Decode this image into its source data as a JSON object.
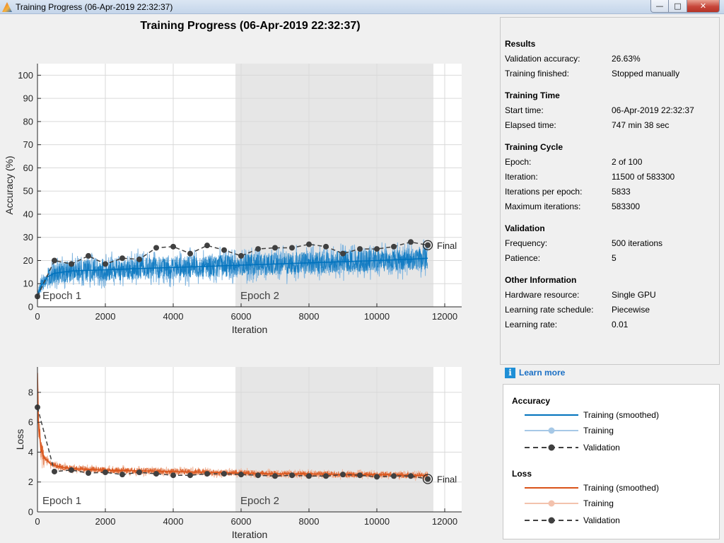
{
  "window": {
    "title": "Training Progress (06-Apr-2019 22:32:37)",
    "app_icon": "matlab-logo-icon",
    "minimize_icon": "minimize-icon",
    "maximize_icon": "maximize-icon",
    "close_icon": "close-icon"
  },
  "plot_title": "Training Progress (06-Apr-2019 22:32:37)",
  "accuracy_plot": {
    "chart_data": {
      "type": "line",
      "xlabel": "Iteration",
      "ylabel": "Accuracy (%)",
      "xlim": [
        0,
        12500
      ],
      "ylim": [
        0,
        105
      ],
      "x_ticks": [
        "0",
        "2000",
        "4000",
        "6000",
        "8000",
        "10000",
        "12000"
      ],
      "y_ticks": [
        "0",
        "10",
        "20",
        "30",
        "40",
        "50",
        "60",
        "70",
        "80",
        "90",
        "100"
      ],
      "grid": true,
      "epochs": [
        {
          "label": "Epoch 1",
          "start": 0,
          "end": 5833,
          "shaded": false
        },
        {
          "label": "Epoch 2",
          "start": 5833,
          "end": 11666,
          "shaded": true
        }
      ],
      "final_label": "Final",
      "final_point": [
        11500,
        26.63
      ],
      "series": [
        {
          "name": "Training (smoothed)",
          "color": "#0072bd",
          "x": [
            0,
            100,
            300,
            500,
            1000,
            2000,
            3000,
            4000,
            5000,
            6000,
            7000,
            8000,
            9000,
            10000,
            11000,
            11500
          ],
          "y": [
            4,
            9,
            13,
            14.5,
            15.5,
            16,
            16.5,
            17,
            17.5,
            18,
            18.5,
            19,
            19.5,
            20,
            20.5,
            21
          ]
        },
        {
          "name": "Training",
          "color": "#7fb5e0",
          "noise_band": 6
        },
        {
          "name": "Validation",
          "color": "#404040",
          "x": [
            0,
            500,
            1000,
            1500,
            2000,
            2500,
            3000,
            3500,
            4000,
            4500,
            5000,
            5500,
            6000,
            6500,
            7000,
            7500,
            8000,
            8500,
            9000,
            9500,
            10000,
            10500,
            11000,
            11500
          ],
          "y": [
            4.5,
            20,
            18.5,
            22,
            18.5,
            21,
            20.5,
            25.5,
            26,
            23,
            26.5,
            24.5,
            22,
            25,
            25.5,
            25.5,
            27,
            26,
            23,
            25,
            25,
            26,
            28,
            26.63
          ]
        }
      ]
    }
  },
  "loss_plot": {
    "chart_data": {
      "type": "line",
      "xlabel": "Iteration",
      "ylabel": "Loss",
      "xlim": [
        0,
        12500
      ],
      "ylim": [
        0,
        9.7
      ],
      "x_ticks": [
        "0",
        "2000",
        "4000",
        "6000",
        "8000",
        "10000",
        "12000"
      ],
      "y_ticks": [
        "0",
        "2",
        "4",
        "6",
        "8"
      ],
      "grid": true,
      "epochs": [
        {
          "label": "Epoch 1",
          "start": 0,
          "end": 5833,
          "shaded": false
        },
        {
          "label": "Epoch 2",
          "start": 5833,
          "end": 11666,
          "shaded": true
        }
      ],
      "final_label": "Final",
      "final_point": [
        11500,
        2.2
      ],
      "series": [
        {
          "name": "Training (smoothed)",
          "color": "#d95319",
          "x": [
            0,
            30,
            100,
            200,
            400,
            700,
            1000,
            2000,
            3000,
            4000,
            5000,
            6000,
            7000,
            8000,
            9000,
            10000,
            11000,
            11500
          ],
          "y": [
            9.3,
            6.0,
            4.2,
            3.6,
            3.2,
            3.0,
            2.9,
            2.8,
            2.75,
            2.7,
            2.65,
            2.6,
            2.55,
            2.55,
            2.5,
            2.5,
            2.45,
            2.45
          ]
        },
        {
          "name": "Training",
          "color": "#f0b89e",
          "noise_band": 0.25
        },
        {
          "name": "Validation",
          "color": "#404040",
          "x": [
            0,
            500,
            1000,
            1500,
            2000,
            2500,
            3000,
            3500,
            4000,
            4500,
            5000,
            5500,
            6000,
            6500,
            7000,
            7500,
            8000,
            8500,
            9000,
            9500,
            10000,
            10500,
            11000,
            11500
          ],
          "y": [
            7.0,
            2.7,
            2.8,
            2.6,
            2.65,
            2.5,
            2.65,
            2.55,
            2.45,
            2.45,
            2.55,
            2.55,
            2.5,
            2.45,
            2.4,
            2.45,
            2.4,
            2.4,
            2.5,
            2.45,
            2.35,
            2.4,
            2.4,
            2.2
          ]
        }
      ]
    }
  },
  "info": {
    "results": {
      "heading": "Results",
      "rows": [
        {
          "label": "Validation accuracy:",
          "value": "26.63%"
        },
        {
          "label": "Training finished:",
          "value": "Stopped manually"
        }
      ]
    },
    "training_time": {
      "heading": "Training Time",
      "rows": [
        {
          "label": "Start time:",
          "value": "06-Apr-2019 22:32:37"
        },
        {
          "label": "Elapsed time:",
          "value": "747 min 38 sec"
        }
      ]
    },
    "training_cycle": {
      "heading": "Training Cycle",
      "rows": [
        {
          "label": "Epoch:",
          "value": "2 of 100"
        },
        {
          "label": "Iteration:",
          "value": "11500 of 583300"
        },
        {
          "label": "Iterations per epoch:",
          "value": "5833"
        },
        {
          "label": "Maximum iterations:",
          "value": "583300"
        }
      ]
    },
    "validation": {
      "heading": "Validation",
      "rows": [
        {
          "label": "Frequency:",
          "value": "500 iterations"
        },
        {
          "label": "Patience:",
          "value": "5"
        }
      ]
    },
    "other": {
      "heading": "Other Information",
      "rows": [
        {
          "label": "Hardware resource:",
          "value": "Single GPU"
        },
        {
          "label": "Learning rate schedule:",
          "value": "Piecewise"
        },
        {
          "label": "Learning rate:",
          "value": "0.01"
        }
      ]
    }
  },
  "learn_more": {
    "label": "Learn more",
    "icon": "info-icon",
    "icon_glyph": "i"
  },
  "legend": {
    "accuracy": {
      "heading": "Accuracy",
      "items": [
        {
          "label": "Training (smoothed)",
          "color": "#0072bd",
          "style": "line"
        },
        {
          "label": "Training",
          "color": "#a6c8e6",
          "style": "line-marker"
        },
        {
          "label": "Validation",
          "color": "#404040",
          "style": "dashed-marker"
        }
      ]
    },
    "loss": {
      "heading": "Loss",
      "items": [
        {
          "label": "Training (smoothed)",
          "color": "#d95319",
          "style": "line"
        },
        {
          "label": "Training",
          "color": "#f3c2ad",
          "style": "line-marker"
        },
        {
          "label": "Validation",
          "color": "#404040",
          "style": "dashed-marker"
        }
      ]
    }
  }
}
